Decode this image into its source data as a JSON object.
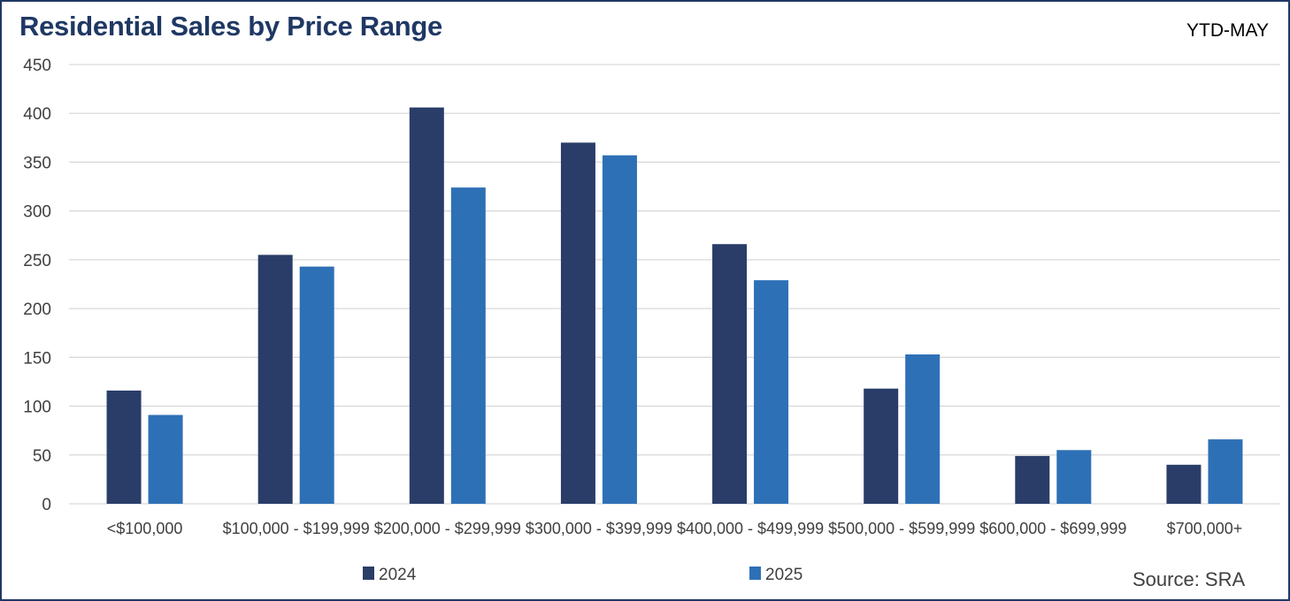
{
  "header": {
    "title": "Residential Sales by Price Range",
    "period": "YTD-MAY",
    "source": "Source: SRA"
  },
  "colors": {
    "2024": "#2a3d69",
    "2025": "#2e70b6",
    "border": "#1f3864",
    "grid": "#d9d9d9"
  },
  "chart_data": {
    "type": "bar",
    "title": "Residential Sales by Price Range",
    "categories": [
      "<$100,000",
      "$100,000 - $199,999",
      "$200,000 - $299,999",
      "$300,000 - $399,999",
      "$400,000 - $499,999",
      "$500,000 - $599,999",
      "$600,000 - $699,999",
      "$700,000+"
    ],
    "series": [
      {
        "name": "2024",
        "values": [
          116,
          255,
          406,
          370,
          266,
          118,
          49,
          40
        ]
      },
      {
        "name": "2025",
        "values": [
          91,
          243,
          324,
          357,
          229,
          153,
          55,
          66
        ]
      }
    ],
    "ylim": [
      0,
      450
    ],
    "yticks": [
      0,
      50,
      100,
      150,
      200,
      250,
      300,
      350,
      400,
      450
    ],
    "grid": true,
    "legend": "bottom"
  }
}
